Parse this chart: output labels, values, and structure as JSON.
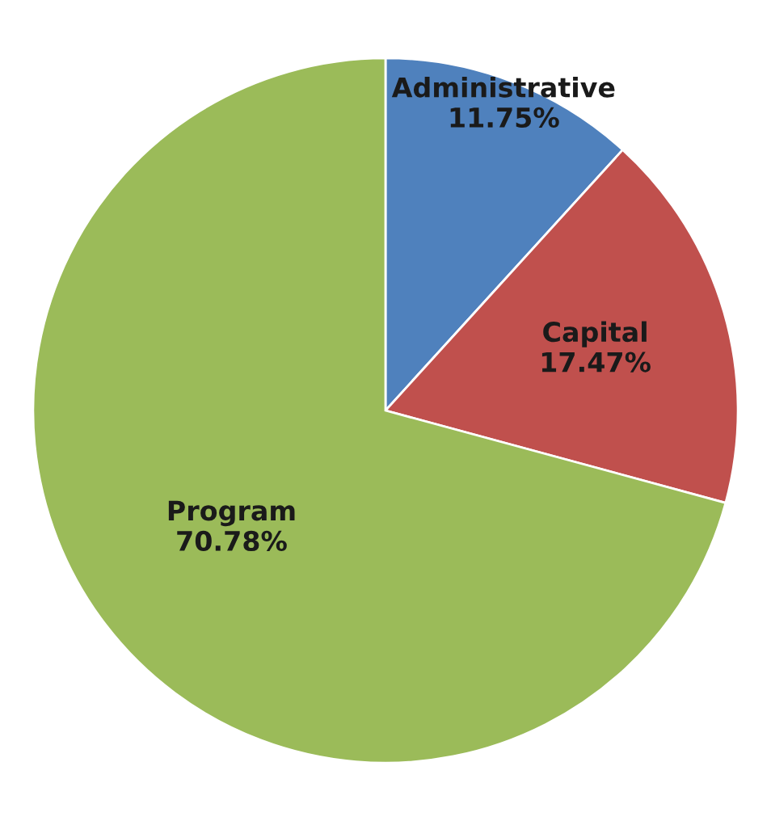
{
  "chart_data": {
    "type": "pie",
    "categories": [
      "Administrative",
      "Capital",
      "Program"
    ],
    "values": [
      11.75,
      17.47,
      70.78
    ],
    "value_labels": [
      "11.75%",
      "17.47%",
      "70.78%"
    ],
    "colors": [
      "#4f81bd",
      "#c0504d",
      "#9bbb59"
    ],
    "legend": false
  }
}
